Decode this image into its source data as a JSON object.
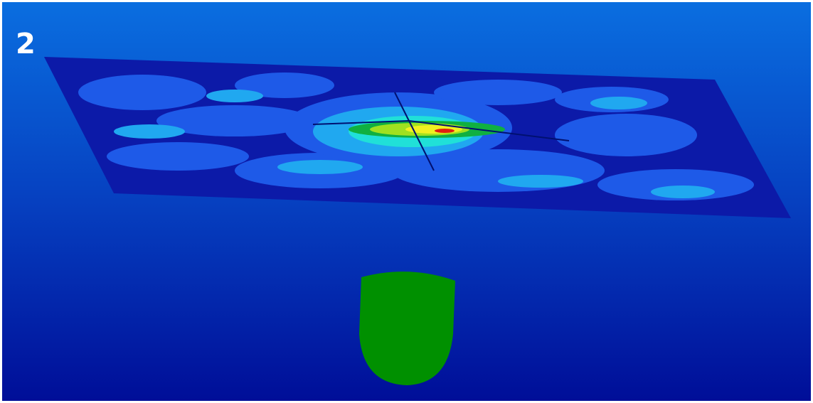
{
  "label": "2"
}
